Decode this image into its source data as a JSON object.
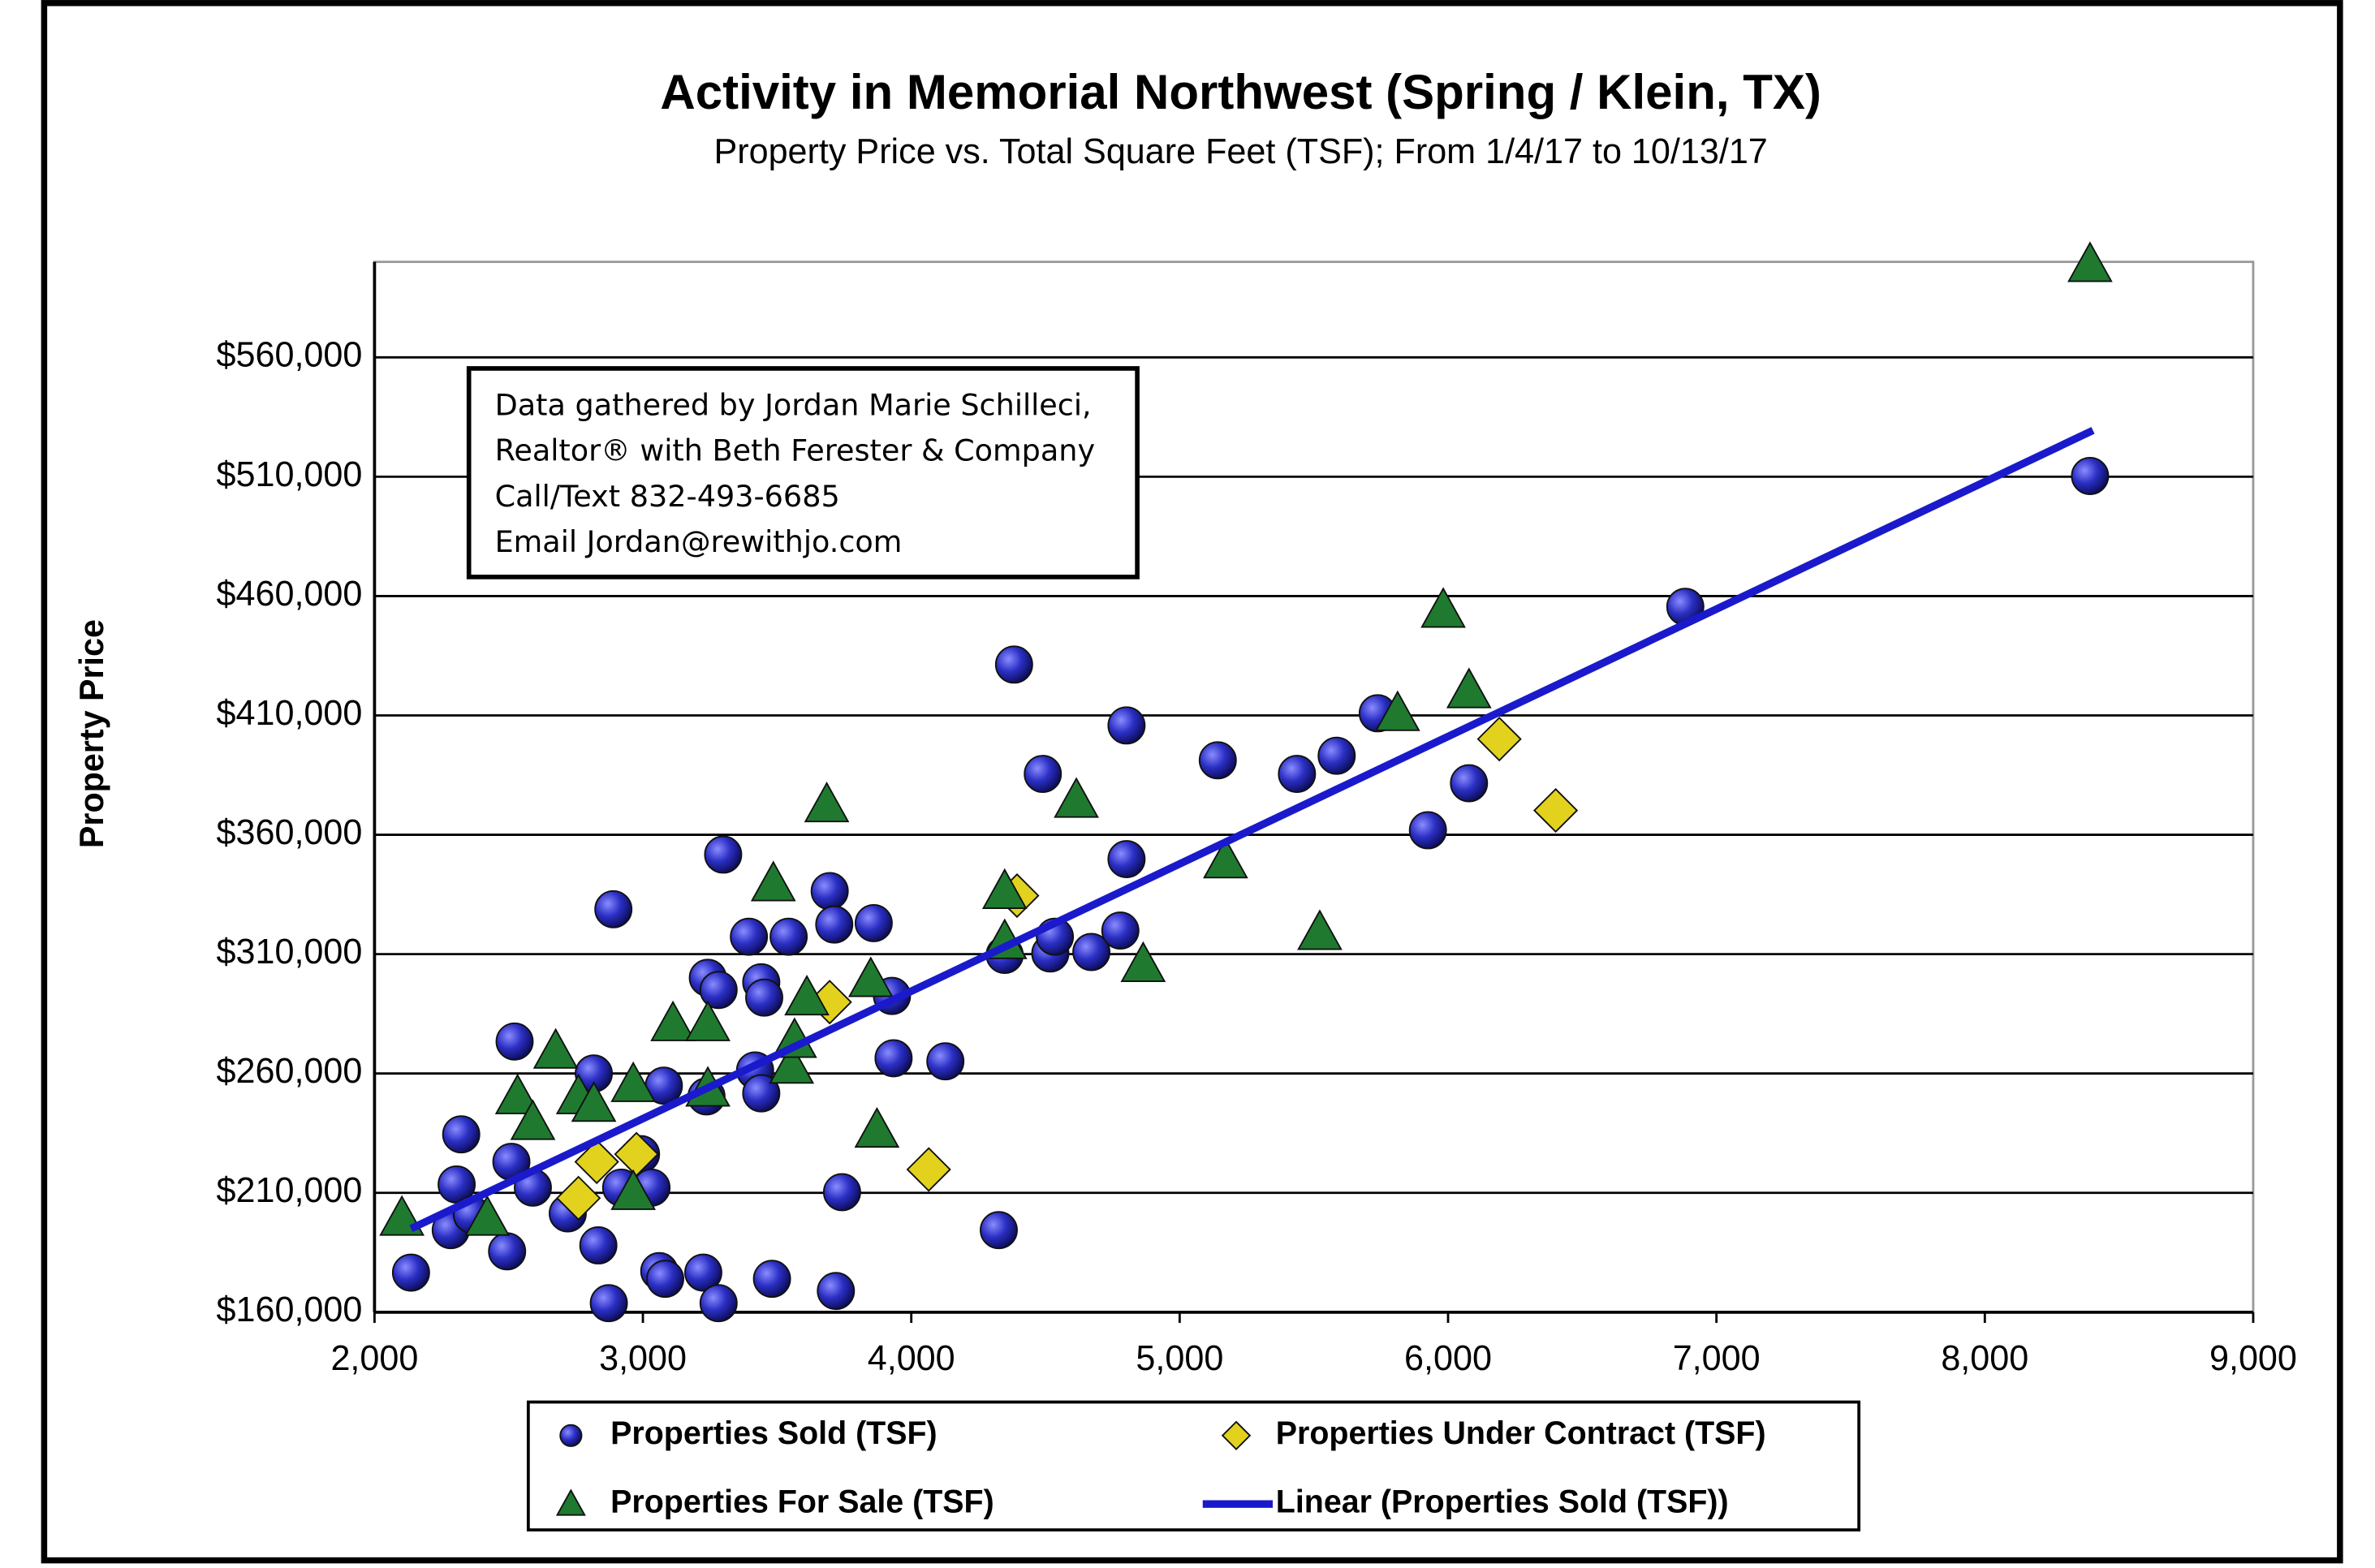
{
  "chart_data": {
    "type": "scatter",
    "title": "Activity in Memorial Northwest (Spring / Klein, TX)",
    "subtitle": "Property Price vs. Total Square Feet (TSF); From 1/4/17 to 10/13/17",
    "y_label": "Property Price",
    "annotation": [
      "Data gathered by Jordan Marie Schilleci,",
      "Realtor® with Beth Ferester & Company",
      "Call/Text 832-493-6685",
      "Email Jordan@rewithjo.com"
    ],
    "xlim": [
      2000,
      9000
    ],
    "ylim": [
      160000,
      600000
    ],
    "xticks": [
      {
        "value": 2000,
        "label": "2,000"
      },
      {
        "value": 3000,
        "label": "3,000"
      },
      {
        "value": 4000,
        "label": "4,000"
      },
      {
        "value": 5000,
        "label": "5,000"
      },
      {
        "value": 6000,
        "label": "6,000"
      },
      {
        "value": 7000,
        "label": "7,000"
      },
      {
        "value": 8000,
        "label": "8,000"
      },
      {
        "value": 9000,
        "label": "9,000"
      }
    ],
    "yticks": [
      {
        "value": 160000,
        "label": "$160,000"
      },
      {
        "value": 210000,
        "label": "$210,000"
      },
      {
        "value": 260000,
        "label": "$260,000"
      },
      {
        "value": 310000,
        "label": "$310,000"
      },
      {
        "value": 360000,
        "label": "$360,000"
      },
      {
        "value": 410000,
        "label": "$410,000"
      },
      {
        "value": 460000,
        "label": "$460,000"
      },
      {
        "value": 510000,
        "label": "$510,000"
      },
      {
        "value": 560000,
        "label": "$560,000"
      }
    ],
    "grid": true,
    "series": [
      {
        "name": "Properties Sold  (TSF)",
        "type": "scatter",
        "marker": "circle",
        "color": "#2b2fc4",
        "x": [
          2136,
          2284,
          2306,
          2323,
          2363,
          2494,
          2510,
          2522,
          2590,
          2720,
          2817,
          2834,
          2873,
          2890,
          2919,
          2993,
          3032,
          3078,
          3061,
          3083,
          3225,
          3237,
          3242,
          3282,
          3282,
          3299,
          3395,
          3418,
          3441,
          3452,
          3441,
          3481,
          3543,
          3696,
          3713,
          3719,
          3742,
          3860,
          3928,
          3934,
          4127,
          4326,
          4348,
          4383,
          4490,
          4518,
          4535,
          4671,
          4779,
          4802,
          4802,
          5142,
          5437,
          5585,
          5738,
          5925,
          6078,
          6884,
          8392
        ],
        "values": [
          176600,
          194400,
          213500,
          234500,
          200800,
          185500,
          223000,
          273400,
          212200,
          201400,
          260000,
          188000,
          163800,
          328800,
          212200,
          226200,
          212200,
          254900,
          177200,
          174000,
          176600,
          250400,
          300100,
          295000,
          163800,
          351700,
          317300,
          261300,
          298200,
          291800,
          251700,
          174000,
          317300,
          336400,
          322400,
          168900,
          210300,
          323000,
          292500,
          266400,
          265100,
          194400,
          309700,
          431300,
          385500,
          310300,
          317300,
          310900,
          319900,
          405800,
          349800,
          391200,
          385500,
          393100,
          410900,
          361900,
          381600,
          455500,
          510300
        ]
      },
      {
        "name": "Properties Under Contract  (TSF)",
        "type": "scatter",
        "marker": "diamond",
        "color": "#e2d21e",
        "x": [
          2760,
          2828,
          2976,
          3696,
          4065,
          4394,
          6191,
          6401
        ],
        "values": [
          207800,
          223000,
          226200,
          289900,
          219800,
          334500,
          400100,
          370200
        ]
      },
      {
        "name": "Properties For Sale  (TSF)",
        "type": "scatter",
        "marker": "triangle",
        "color": "#1f7a30",
        "x": [
          2102,
          2420,
          2533,
          2590,
          2675,
          2760,
          2817,
          2964,
          2964,
          3112,
          3242,
          3242,
          3486,
          3554,
          3565,
          3611,
          3685,
          3849,
          3872,
          4348,
          4348,
          4615,
          4864,
          5171,
          5522,
          5812,
          5982,
          6078,
          8392
        ],
        "values": [
          199500,
          199500,
          250400,
          239600,
          269500,
          250400,
          247200,
          255500,
          210300,
          281000,
          281000,
          253600,
          339600,
          263200,
          274000,
          291800,
          372700,
          299500,
          236400,
          336400,
          315400,
          374600,
          305800,
          349200,
          319200,
          410900,
          454200,
          420500,
          599000
        ]
      },
      {
        "name": "Linear  (Properties Sold  (TSF))",
        "type": "line",
        "color": "#1a1acc",
        "x": [
          2136,
          8403
        ],
        "values": [
          195000,
          529400
        ]
      }
    ]
  }
}
